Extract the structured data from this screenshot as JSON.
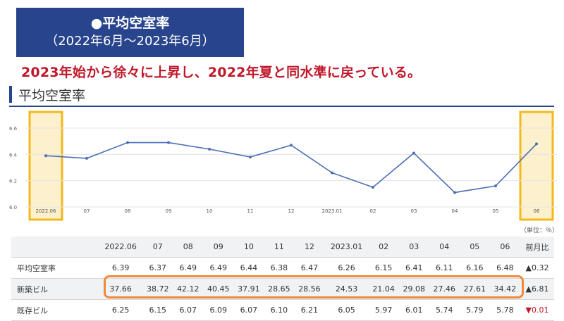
{
  "header": {
    "title": "●平均空室率",
    "period": "（2022年6月～2023年6月）"
  },
  "headline": "2023年始から徐々に上昇し、2022年夏と同水準に戻っている。",
  "section_title": "平均空室率",
  "unit_note": "（単位：％）",
  "colors": {
    "header_bg": "#27448d",
    "headline": "#c0182a",
    "line": "#4a6fb5",
    "highlight_border": "#f2b81c",
    "highlight_fill": "#fdf0cc",
    "table_outline": "#ef8a3c",
    "negative": "#c0182a"
  },
  "chart_data": {
    "type": "line",
    "categories": [
      "2022.06",
      "07",
      "08",
      "09",
      "10",
      "11",
      "12",
      "2023.01",
      "02",
      "03",
      "04",
      "05",
      "06"
    ],
    "series": [
      {
        "name": "平均空室率",
        "values": [
          6.39,
          6.37,
          6.49,
          6.49,
          6.44,
          6.38,
          6.47,
          6.26,
          6.15,
          6.41,
          6.11,
          6.16,
          6.48
        ]
      }
    ],
    "ylim": [
      6.0,
      6.6
    ],
    "yticks": [
      "6.0",
      "6.2",
      "6.4",
      "6.6"
    ],
    "grid": true,
    "highlighted_categories": [
      "2022.06",
      "06"
    ]
  },
  "table": {
    "headers": [
      "2022.06",
      "07",
      "08",
      "09",
      "10",
      "11",
      "12",
      "2023.01",
      "02",
      "03",
      "04",
      "05",
      "06",
      "前月比"
    ],
    "rows": [
      {
        "label": "平均空室率",
        "values": [
          "6.39",
          "6.37",
          "6.49",
          "6.49",
          "6.44",
          "6.38",
          "6.47",
          "6.26",
          "6.15",
          "6.41",
          "6.11",
          "6.16",
          "6.48"
        ],
        "change": "0.32",
        "direction": "up"
      },
      {
        "label": "新築ビル",
        "values": [
          "37.66",
          "38.72",
          "42.12",
          "40.45",
          "37.91",
          "28.65",
          "28.56",
          "24.53",
          "21.04",
          "29.08",
          "27.46",
          "27.61",
          "34.42"
        ],
        "change": "6.81",
        "direction": "up"
      },
      {
        "label": "既存ビル",
        "values": [
          "6.25",
          "6.15",
          "6.07",
          "6.09",
          "6.07",
          "6.10",
          "6.21",
          "6.05",
          "5.97",
          "6.01",
          "5.74",
          "5.79",
          "5.78"
        ],
        "change": "0.01",
        "direction": "down"
      }
    ]
  }
}
